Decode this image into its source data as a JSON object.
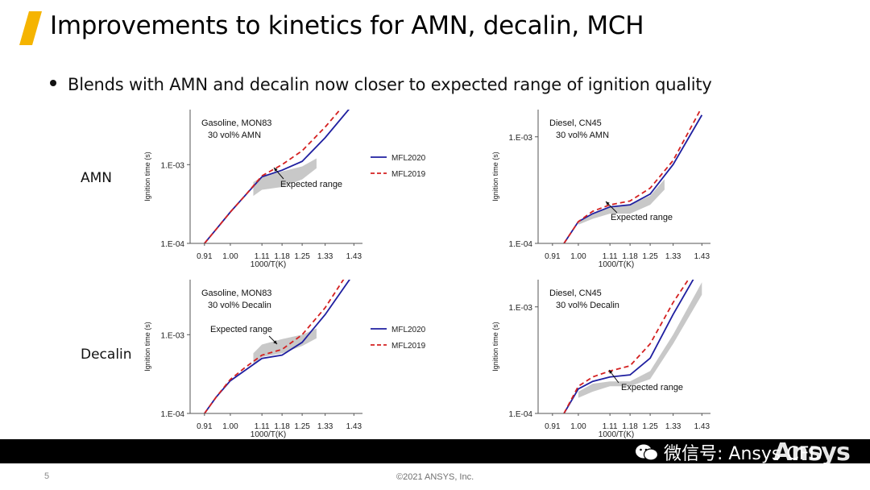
{
  "slide": {
    "title": "Improvements to kinetics for AMN, decalin, MCH",
    "bullet": "Blends with AMN and decalin now closer to expected range of ignition quality",
    "row_labels": [
      "AMN",
      "Decalin"
    ],
    "page_number": "5",
    "copyright": "©2021 ANSYS, Inc.",
    "watermark_text": "微信号: Ansys CFD",
    "brand": "Ansys",
    "accent_color": "#f5b400"
  },
  "legend": {
    "mfl2020": "MFL2020",
    "mfl2019": "MFL2019"
  },
  "chart_data": [
    {
      "type": "line",
      "title_line1": "Gasoline, MON83",
      "title_line2": "30 vol% AMN",
      "xlabel": "1000/T(K)",
      "ylabel": "Ignition time (s)",
      "xticks": [
        "0.91",
        "1.00",
        "1.11",
        "1.18",
        "1.25",
        "1.33",
        "1.43"
      ],
      "yticks": [
        "1.E-04",
        "1.E-03"
      ],
      "xlim": [
        0.86,
        1.46
      ],
      "ylim": [
        0.0001,
        0.005
      ],
      "annotation": "Expected range",
      "series": [
        {
          "name": "MFL2020",
          "color": "#1f1fa0",
          "dash": false,
          "x": [
            0.91,
            0.95,
            1.0,
            1.05,
            1.11,
            1.18,
            1.25,
            1.33,
            1.43
          ],
          "y": [
            0.0001,
            0.00015,
            0.00025,
            0.0004,
            0.0007,
            0.00085,
            0.0011,
            0.0022,
            0.006
          ]
        },
        {
          "name": "MFL2019",
          "color": "#d42020",
          "dash": true,
          "x": [
            0.91,
            0.95,
            1.0,
            1.05,
            1.11,
            1.18,
            1.25,
            1.33,
            1.43
          ],
          "y": [
            0.0001,
            0.00015,
            0.00025,
            0.0004,
            0.00072,
            0.001,
            0.0015,
            0.003,
            0.008
          ]
        }
      ],
      "band": {
        "x": [
          1.08,
          1.11,
          1.18,
          1.25,
          1.3
        ],
        "upper": [
          0.0006,
          0.0007,
          0.00082,
          0.00095,
          0.0012
        ],
        "lower": [
          0.0004,
          0.00048,
          0.00052,
          0.00065,
          0.0009
        ]
      }
    },
    {
      "type": "line",
      "title_line1": "Diesel, CN45",
      "title_line2": "30 vol% AMN",
      "xlabel": "1000/T(K)",
      "ylabel": "Ignition time (s)",
      "xticks": [
        "0.91",
        "1.00",
        "1.11",
        "1.18",
        "1.25",
        "1.33",
        "1.43"
      ],
      "yticks": [
        "1.E-04",
        "1.E-03"
      ],
      "xlim": [
        0.86,
        1.46
      ],
      "ylim": [
        0.0001,
        0.0018
      ],
      "annotation": "Expected range",
      "series": [
        {
          "name": "MFL2020",
          "color": "#1f1fa0",
          "dash": false,
          "x": [
            0.95,
            1.0,
            1.05,
            1.11,
            1.18,
            1.25,
            1.33,
            1.43
          ],
          "y": [
            0.0001,
            0.00016,
            0.00019,
            0.00022,
            0.00023,
            0.00029,
            0.00055,
            0.0016
          ]
        },
        {
          "name": "MFL2019",
          "color": "#d42020",
          "dash": true,
          "x": [
            0.95,
            1.0,
            1.05,
            1.11,
            1.18,
            1.25,
            1.33,
            1.43
          ],
          "y": [
            0.0001,
            0.00016,
            0.0002,
            0.00023,
            0.00025,
            0.00033,
            0.0006,
            0.0019
          ]
        }
      ],
      "band": {
        "x": [
          1.0,
          1.05,
          1.11,
          1.18,
          1.25,
          1.3
        ],
        "upper": [
          0.00016,
          0.00019,
          0.00022,
          0.00023,
          0.00028,
          0.0004
        ],
        "lower": [
          0.00015,
          0.00017,
          0.00019,
          0.00019,
          0.00023,
          0.00032
        ]
      }
    },
    {
      "type": "line",
      "title_line1": "Gasoline, MON83",
      "title_line2": "30 vol% Decalin",
      "xlabel": "1000/T(K)",
      "ylabel": "Ignition time (s)",
      "xticks": [
        "0.91",
        "1.00",
        "1.11",
        "1.18",
        "1.25",
        "1.33",
        "1.43"
      ],
      "yticks": [
        "1.E-04",
        "1.E-03"
      ],
      "xlim": [
        0.86,
        1.46
      ],
      "ylim": [
        0.0001,
        0.005
      ],
      "annotation": "Expected range",
      "series": [
        {
          "name": "MFL2020",
          "color": "#1f1fa0",
          "dash": false,
          "x": [
            0.91,
            0.95,
            1.0,
            1.05,
            1.11,
            1.18,
            1.25,
            1.33,
            1.43
          ],
          "y": [
            0.0001,
            0.00016,
            0.00026,
            0.00035,
            0.0005,
            0.00055,
            0.0008,
            0.0018,
            0.006
          ]
        },
        {
          "name": "MFL2019",
          "color": "#d42020",
          "dash": true,
          "x": [
            0.91,
            0.95,
            1.0,
            1.05,
            1.11,
            1.18,
            1.25,
            1.33,
            1.43
          ],
          "y": [
            0.0001,
            0.00016,
            0.00027,
            0.00038,
            0.00055,
            0.00065,
            0.001,
            0.0022,
            0.008
          ]
        }
      ],
      "band": {
        "x": [
          1.08,
          1.11,
          1.18,
          1.25,
          1.3
        ],
        "upper": [
          0.00058,
          0.00075,
          0.00088,
          0.001,
          0.0012
        ],
        "lower": [
          0.00042,
          0.00052,
          0.00058,
          0.00072,
          0.0009
        ]
      }
    },
    {
      "type": "line",
      "title_line1": "Diesel, CN45",
      "title_line2": "30 vol% Decalin",
      "xlabel": "1000/T(K)",
      "ylabel": "Ignition time (s)",
      "xticks": [
        "0.91",
        "1.00",
        "1.11",
        "1.18",
        "1.25",
        "1.33",
        "1.43"
      ],
      "yticks": [
        "1.E-04",
        "1.E-03"
      ],
      "xlim": [
        0.86,
        1.46
      ],
      "ylim": [
        0.0001,
        0.0018
      ],
      "annotation": "Expected range",
      "series": [
        {
          "name": "MFL2020",
          "color": "#1f1fa0",
          "dash": false,
          "x": [
            0.95,
            1.0,
            1.05,
            1.11,
            1.18,
            1.25,
            1.33,
            1.43
          ],
          "y": [
            0.0001,
            0.00017,
            0.0002,
            0.00022,
            0.00023,
            0.00033,
            0.00085,
            0.0025
          ]
        },
        {
          "name": "MFL2019",
          "color": "#d42020",
          "dash": true,
          "x": [
            0.95,
            1.0,
            1.05,
            1.11,
            1.18,
            1.25,
            1.33,
            1.43
          ],
          "y": [
            0.0001,
            0.00018,
            0.00022,
            0.00025,
            0.00028,
            0.00045,
            0.0011,
            0.0028
          ]
        }
      ],
      "band": {
        "x": [
          1.0,
          1.05,
          1.11,
          1.18,
          1.25,
          1.33,
          1.43
        ],
        "upper": [
          0.00016,
          0.00019,
          0.0002,
          0.0002,
          0.00025,
          0.00055,
          0.0017
        ],
        "lower": [
          0.00014,
          0.00016,
          0.00018,
          0.00018,
          0.00021,
          0.00045,
          0.0013
        ]
      }
    }
  ]
}
